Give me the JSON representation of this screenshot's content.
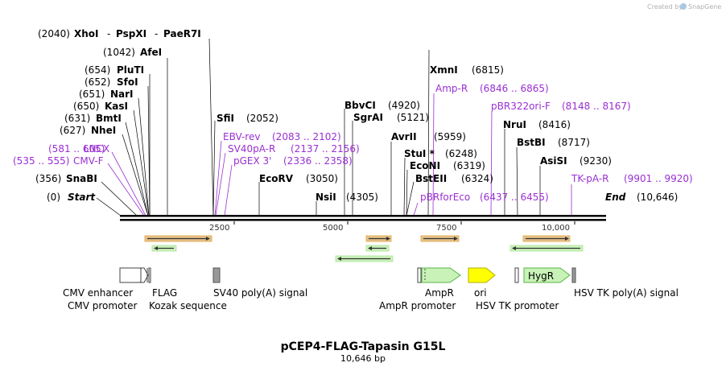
{
  "header": {
    "credit_prefix": "Created by",
    "credit_brand": "SnapGene"
  },
  "title": {
    "name": "pCEP4-FLAG-Tapasin G15L",
    "length": "10,646 bp"
  },
  "sites": {
    "xhoi_pos": "(2040)",
    "xhoi": "XhoI",
    "pspxi": "PspXI",
    "paer7i": "PaeR7I",
    "dash1": "-",
    "dash2": "-",
    "afei_pos": "(1042)",
    "afei": "AfeI",
    "pluti_pos": "(654)",
    "pluti": "PluTI",
    "sfoi_pos": "(652)",
    "sfoi": "SfoI",
    "nari_pos": "(651)",
    "nari": "NarI",
    "kasi_pos": "(650)",
    "kasi": "KasI",
    "bmti_pos": "(631)",
    "bmti": "BmtI",
    "nhei_pos": "(627)",
    "nhei": "NheI",
    "snabi_pos": "(356)",
    "snabi": "SnaBI",
    "start_pos": "(0)",
    "start": "Start",
    "sfii": "SfiI",
    "sfii_pos": "(2052)",
    "ecorv": "EcoRV",
    "ecorv_pos": "(3050)",
    "nsii": "NsiI",
    "nsii_pos": "(4305)",
    "bbvci": "BbvCI",
    "bbvci_pos": "(4920)",
    "sgrai": "SgrAI",
    "sgrai_pos": "(5121)",
    "avrii": "AvrII",
    "avrii_pos": "(5959)",
    "stui": "StuI *",
    "stui_pos": "(6248)",
    "econi": "EcoNI",
    "econi_pos": "(6319)",
    "bsteii": "BstEII",
    "bsteii_pos": "(6324)",
    "xmni": "XmnI",
    "xmni_pos": "(6815)",
    "nrui": "NruI",
    "nrui_pos": "(8416)",
    "bstbi": "BstBI",
    "bstbi_pos": "(8717)",
    "asisi": "AsiSI",
    "asisi_pos": "(9230)",
    "end": "End",
    "end_pos": "(10,646)"
  },
  "primers": {
    "lncx": "LNCX",
    "lncx_range": "(581 .. 605)",
    "cmvf": "CMV-F",
    "cmvf_range": "(535 .. 555)",
    "ebvrev": "EBV-rev",
    "ebvrev_range": "(2083 .. 2102)",
    "sv40par": "SV40pA-R",
    "sv40par_range": "(2137 .. 2156)",
    "pgex3": "pGEX 3'",
    "pgex3_range": "(2336 .. 2358)",
    "ampr": "Amp-R",
    "ampr_range": "(6846 .. 6865)",
    "pbr322": "pBR322ori-F",
    "pbr322_range": "(8148 .. 8167)",
    "pbrforeco": "pBRforEco",
    "pbrforeco_range": "(6437 .. 6455)",
    "tkpar": "TK-pA-R",
    "tkpar_range": "(9901 .. 9920)"
  },
  "axis": {
    "ticks": [
      "2500",
      "5000",
      "7500",
      "10,000"
    ]
  },
  "features": {
    "cmv_enhancer": "CMV enhancer",
    "cmv_promoter": "CMV promoter",
    "flag": "FLAG",
    "kozak": "Kozak sequence",
    "sv40_polya": "SV40 poly(A) signal",
    "ampr": "AmpR",
    "ampr_promoter": "AmpR promoter",
    "ori": "ori",
    "hsv_tk_promoter": "HSV TK promoter",
    "hygr": "HygR",
    "hsv_tk_polya": "HSV TK poly(A) signal"
  },
  "colors": {
    "primer": "#9a2fd2",
    "orf_fill": "#e4c087",
    "orf_edge": "#d89a28",
    "green_fill": "#c9f2b8",
    "green_edge": "#58b442",
    "ori_fill": "#ffff00",
    "ori_edge": "#a0a000",
    "gray_box": "#999999"
  }
}
